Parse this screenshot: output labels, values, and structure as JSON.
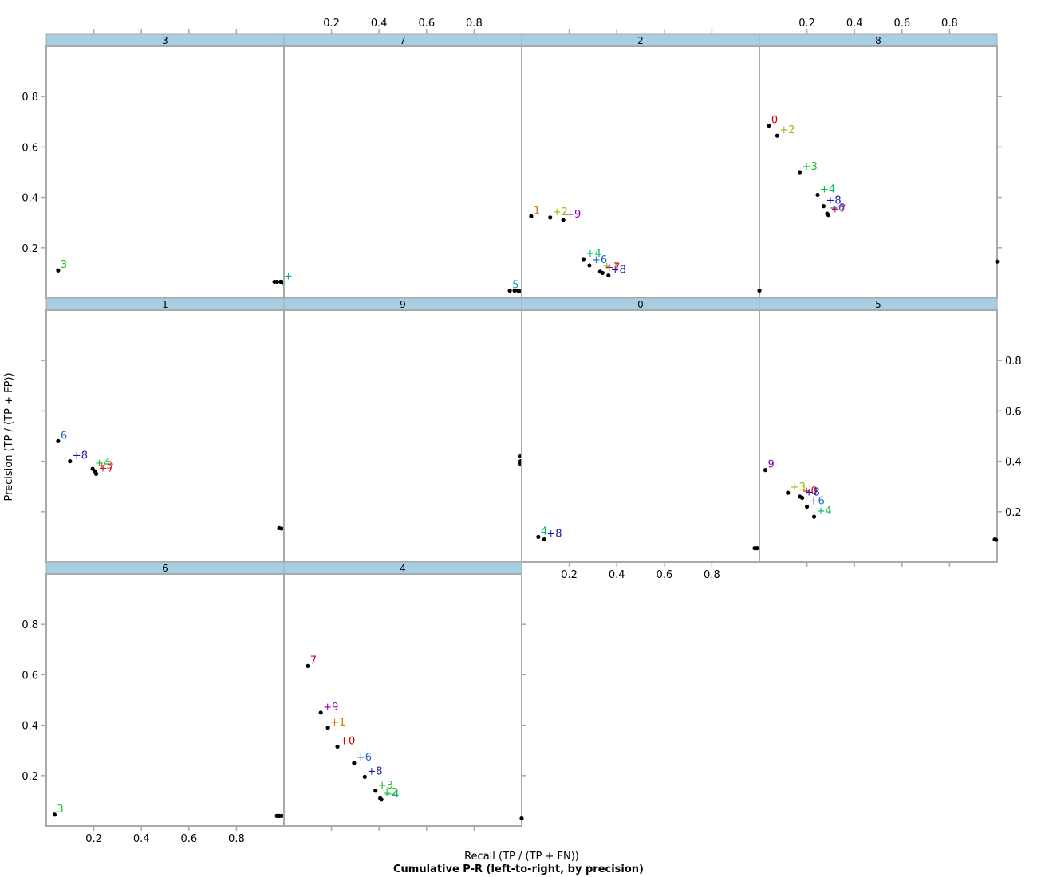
{
  "chart_data": {
    "type": "scatter",
    "layout": "trellis",
    "title": "Cumulative P-R (left-to-right, by precision)",
    "xlabel": "Recall (TP / (TP + FN))",
    "ylabel": "Precision (TP / (TP + FP))",
    "xlim": [
      0.0,
      1.0
    ],
    "ylim": [
      0.0,
      1.0
    ],
    "xticks": [
      "0.2",
      "0.4",
      "0.6",
      "0.8"
    ],
    "yticks": [
      "0.2",
      "0.4",
      "0.6",
      "0.8"
    ],
    "class_colors": {
      "0": "#cc0000",
      "1": "#cc7a00",
      "2": "#99bb00",
      "3": "#22bb22",
      "4": "#00bb55",
      "5": "#00aaaa",
      "6": "#1a66cc",
      "7": "#cc0055",
      "8": "#1a1aaa",
      "9": "#8800aa"
    },
    "panels": [
      {
        "strip": "3",
        "points": [
          {
            "label": "3",
            "x": 0.05,
            "y": 0.11,
            "c": "3"
          },
          {
            "label": "",
            "x": 0.96,
            "y": 0.065
          },
          {
            "label": "",
            "x": 0.97,
            "y": 0.065
          },
          {
            "label": "",
            "x": 0.985,
            "y": 0.065
          },
          {
            "label": "+",
            "x": 0.99,
            "y": 0.065,
            "c": "5"
          },
          {
            "label": "",
            "x": 0.995,
            "y": 0.063
          }
        ]
      },
      {
        "strip": "7",
        "points": [
          {
            "label": "5",
            "x": 0.95,
            "y": 0.03,
            "c": "5"
          },
          {
            "label": "",
            "x": 0.97,
            "y": 0.03
          },
          {
            "label": "",
            "x": 0.985,
            "y": 0.03
          },
          {
            "label": "",
            "x": 0.99,
            "y": 0.028
          }
        ]
      },
      {
        "strip": "2",
        "points": [
          {
            "label": "1",
            "x": 0.04,
            "y": 0.325,
            "c": "1"
          },
          {
            "label": "+2",
            "x": 0.12,
            "y": 0.32,
            "c": "2"
          },
          {
            "label": "+9",
            "x": 0.175,
            "y": 0.31,
            "c": "9"
          },
          {
            "label": "+4",
            "x": 0.26,
            "y": 0.155,
            "c": "4"
          },
          {
            "label": "+6",
            "x": 0.285,
            "y": 0.13,
            "c": "6"
          },
          {
            "label": "+3",
            "x": 0.33,
            "y": 0.105,
            "c": "2"
          },
          {
            "label": "+7",
            "x": 0.34,
            "y": 0.1,
            "c": "7"
          },
          {
            "label": "+8",
            "x": 0.365,
            "y": 0.09,
            "c": "8"
          }
        ]
      },
      {
        "strip": "8",
        "points": [
          {
            "label": "0",
            "x": 0.04,
            "y": 0.685,
            "c": "0"
          },
          {
            "label": "+2",
            "x": 0.075,
            "y": 0.645,
            "c": "2"
          },
          {
            "label": "+3",
            "x": 0.17,
            "y": 0.5,
            "c": "3"
          },
          {
            "label": "+4",
            "x": 0.245,
            "y": 0.41,
            "c": "4"
          },
          {
            "label": "+8",
            "x": 0.27,
            "y": 0.365,
            "c": "8"
          },
          {
            "label": "+6",
            "x": 0.285,
            "y": 0.335,
            "c": "6"
          },
          {
            "label": "+7",
            "x": 0.29,
            "y": 0.33,
            "c": "7"
          },
          {
            "label": "",
            "x": 0.0,
            "y": 0.03
          },
          {
            "label": "",
            "x": 1.0,
            "y": 0.145
          }
        ]
      },
      {
        "strip": "1",
        "points": [
          {
            "label": "6",
            "x": 0.05,
            "y": 0.48,
            "c": "6"
          },
          {
            "label": "+8",
            "x": 0.1,
            "y": 0.4,
            "c": "8"
          },
          {
            "label": "+4",
            "x": 0.195,
            "y": 0.37,
            "c": "4"
          },
          {
            "label": "+3",
            "x": 0.205,
            "y": 0.36,
            "c": "1"
          },
          {
            "label": "+7",
            "x": 0.21,
            "y": 0.35,
            "c": "7"
          },
          {
            "label": "",
            "x": 0.98,
            "y": 0.135
          },
          {
            "label": "",
            "x": 0.99,
            "y": 0.133
          }
        ]
      },
      {
        "strip": "9",
        "points": [
          {
            "label": "",
            "x": 0.995,
            "y": 0.42
          },
          {
            "label": "",
            "x": 0.995,
            "y": 0.4
          },
          {
            "label": "",
            "x": 0.995,
            "y": 0.39
          }
        ]
      },
      {
        "strip": "0",
        "points": [
          {
            "label": "4",
            "x": 0.07,
            "y": 0.1,
            "c": "4"
          },
          {
            "label": "+8",
            "x": 0.095,
            "y": 0.09,
            "c": "8"
          },
          {
            "label": "",
            "x": 0.98,
            "y": 0.055
          },
          {
            "label": "",
            "x": 0.99,
            "y": 0.055
          }
        ]
      },
      {
        "strip": "5",
        "points": [
          {
            "label": "9",
            "x": 0.025,
            "y": 0.365,
            "c": "9"
          },
          {
            "label": "+3",
            "x": 0.12,
            "y": 0.275,
            "c": "2"
          },
          {
            "label": "+0",
            "x": 0.17,
            "y": 0.26,
            "c": "0"
          },
          {
            "label": "+8",
            "x": 0.18,
            "y": 0.255,
            "c": "8"
          },
          {
            "label": "+6",
            "x": 0.2,
            "y": 0.22,
            "c": "6"
          },
          {
            "label": "+4",
            "x": 0.23,
            "y": 0.18,
            "c": "4"
          },
          {
            "label": "",
            "x": 0.99,
            "y": 0.09
          },
          {
            "label": "",
            "x": 0.995,
            "y": 0.088
          }
        ]
      },
      {
        "strip": "6",
        "points": [
          {
            "label": "3",
            "x": 0.035,
            "y": 0.045,
            "c": "3"
          },
          {
            "label": "",
            "x": 0.97,
            "y": 0.04
          },
          {
            "label": "",
            "x": 0.98,
            "y": 0.04
          },
          {
            "label": "",
            "x": 0.99,
            "y": 0.04
          }
        ]
      },
      {
        "strip": "4",
        "points": [
          {
            "label": "7",
            "x": 0.1,
            "y": 0.635,
            "c": "7"
          },
          {
            "label": "+9",
            "x": 0.155,
            "y": 0.45,
            "c": "9"
          },
          {
            "label": "+1",
            "x": 0.185,
            "y": 0.39,
            "c": "1"
          },
          {
            "label": "+0",
            "x": 0.225,
            "y": 0.315,
            "c": "0"
          },
          {
            "label": "+6",
            "x": 0.295,
            "y": 0.25,
            "c": "6"
          },
          {
            "label": "+8",
            "x": 0.34,
            "y": 0.195,
            "c": "8"
          },
          {
            "label": "+3",
            "x": 0.385,
            "y": 0.14,
            "c": "3"
          },
          {
            "label": "+2",
            "x": 0.405,
            "y": 0.11,
            "c": "3"
          },
          {
            "label": "+4",
            "x": 0.41,
            "y": 0.105,
            "c": "4"
          },
          {
            "label": "",
            "x": 1.0,
            "y": 0.03
          }
        ]
      }
    ]
  }
}
